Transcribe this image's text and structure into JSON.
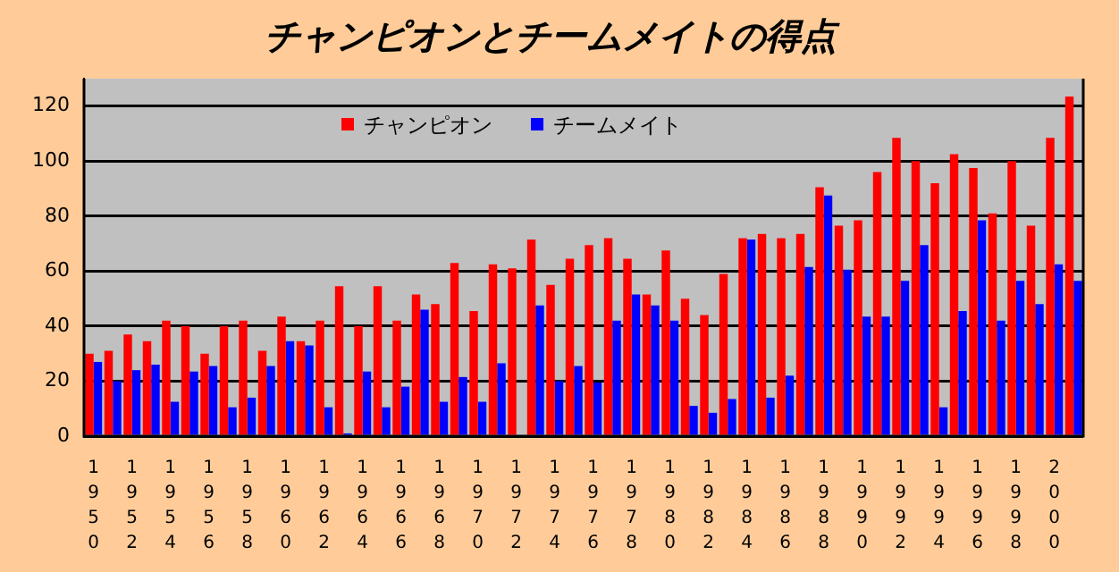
{
  "chart_data": {
    "type": "bar",
    "title": "チャンピオンとチームメイトの得点",
    "categories": [
      "1950",
      null,
      "1952",
      null,
      "1954",
      null,
      "1956",
      null,
      "1958",
      null,
      "1960",
      null,
      "1962",
      null,
      "1964",
      null,
      "1966",
      null,
      "1968",
      null,
      "1970",
      null,
      "1972",
      null,
      "1974",
      null,
      "1976",
      null,
      "1978",
      null,
      "1980",
      null,
      "1982",
      null,
      "1984",
      null,
      "1986",
      null,
      "1988",
      null,
      "1990",
      null,
      "1992",
      null,
      "1994",
      null,
      "1996",
      null,
      "1998",
      null,
      "2000",
      null
    ],
    "series": [
      {
        "name": "チャンピオン",
        "color": "#ff0000",
        "values": [
          30,
          31,
          37,
          34.5,
          42,
          40,
          30,
          40,
          42,
          31,
          43.5,
          34.5,
          42,
          54.5,
          40,
          54.5,
          42,
          51.5,
          48,
          63,
          45.5,
          62.5,
          61,
          71.5,
          55,
          64.5,
          69.5,
          72,
          64.5,
          51.5,
          67.5,
          50,
          44,
          59,
          72,
          73.5,
          72,
          73.5,
          90.5,
          76.5,
          78.5,
          96,
          108.5,
          100,
          92,
          102.5,
          97.5,
          81,
          100,
          76.5,
          108.5,
          123.5
        ]
      },
      {
        "name": "チームメイト",
        "color": "#0000ff",
        "values": [
          27,
          20,
          24,
          26,
          12.5,
          23.5,
          25.5,
          10.5,
          14,
          25.5,
          34.5,
          33,
          10.5,
          1,
          23.5,
          10.5,
          18,
          46,
          12.5,
          21.5,
          12.5,
          26.5,
          0,
          47.5,
          20,
          25.5,
          19.5,
          42,
          51.5,
          47.5,
          42,
          11,
          8.5,
          13.5,
          71.5,
          14,
          22,
          61.5,
          87.5,
          60.5,
          43.5,
          43.5,
          56.5,
          69.5,
          10.5,
          45.5,
          78.5,
          42,
          56.5,
          48,
          62.5,
          56.5
        ]
      }
    ],
    "ylim": [
      0,
      130
    ],
    "yticks": [
      0,
      20,
      40,
      60,
      80,
      100,
      120
    ],
    "grid": "y",
    "legend": "top"
  }
}
